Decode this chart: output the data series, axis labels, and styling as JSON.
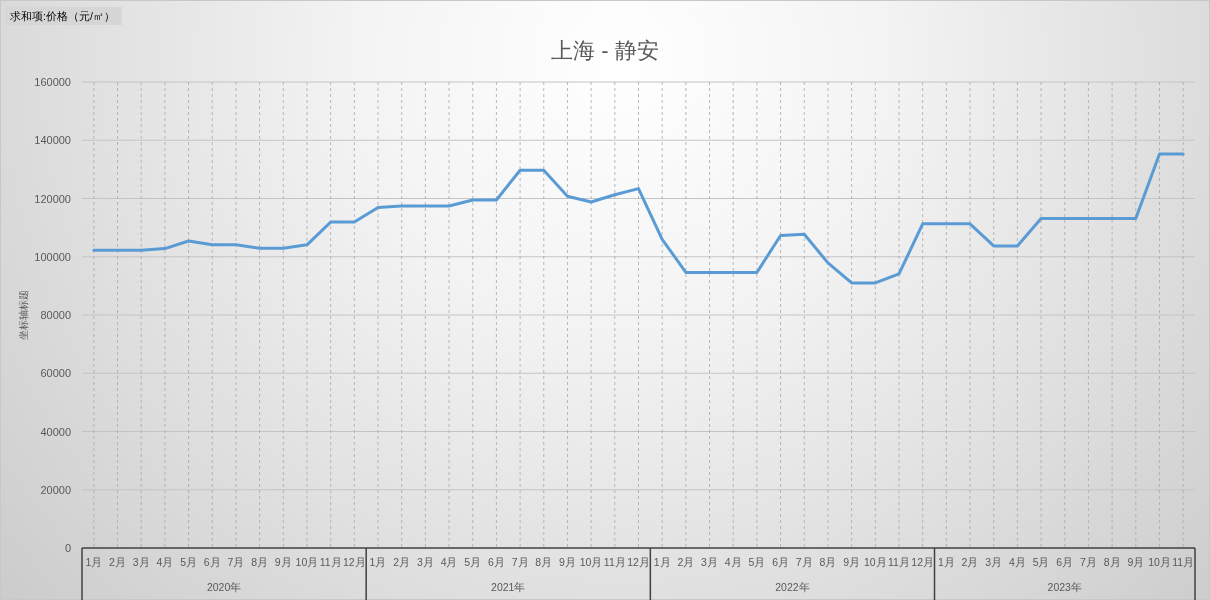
{
  "chart_data": {
    "type": "line",
    "title": "上海 - 静安",
    "ylabel": "坐标轴标题",
    "annotations": [
      "求和项:价格（元/㎡）",
      "2020年",
      "2021年",
      "2022年",
      "2023年"
    ],
    "categories": [
      "1月",
      "2月",
      "3月",
      "4月",
      "5月",
      "6月",
      "7月",
      "8月",
      "9月",
      "10月",
      "11月",
      "12月",
      "1月",
      "2月",
      "3月",
      "4月",
      "5月",
      "6月",
      "7月",
      "8月",
      "9月",
      "10月",
      "11月",
      "12月",
      "1月",
      "2月",
      "3月",
      "4月",
      "5月",
      "6月",
      "7月",
      "8月",
      "9月",
      "10月",
      "11月",
      "12月",
      "1月",
      "2月",
      "3月",
      "4月",
      "5月",
      "6月",
      "7月",
      "8月",
      "9月",
      "10月",
      "11月"
    ],
    "series": [
      {
        "color": "#5b9bd5",
        "values": [
          102200,
          102200,
          102200,
          102800,
          105400,
          104100,
          104100,
          102900,
          102900,
          104100,
          111900,
          111900,
          116900,
          117400,
          117400,
          117400,
          119500,
          119500,
          129700,
          129700,
          120800,
          118800,
          121300,
          123400,
          106000,
          94600,
          94600,
          94600,
          94600,
          107300,
          107700,
          97900,
          91000,
          91000,
          94100,
          111300,
          111300,
          111300,
          103700,
          103700,
          113100,
          113100,
          113100,
          113100,
          113100,
          135300,
          135300
        ]
      }
    ],
    "ylim": [
      0,
      160000
    ],
    "yticks": [
      0,
      20000,
      40000,
      60000,
      80000,
      100000,
      120000,
      140000,
      160000
    ],
    "grid": true,
    "marker": "none",
    "line_style": "solid"
  }
}
